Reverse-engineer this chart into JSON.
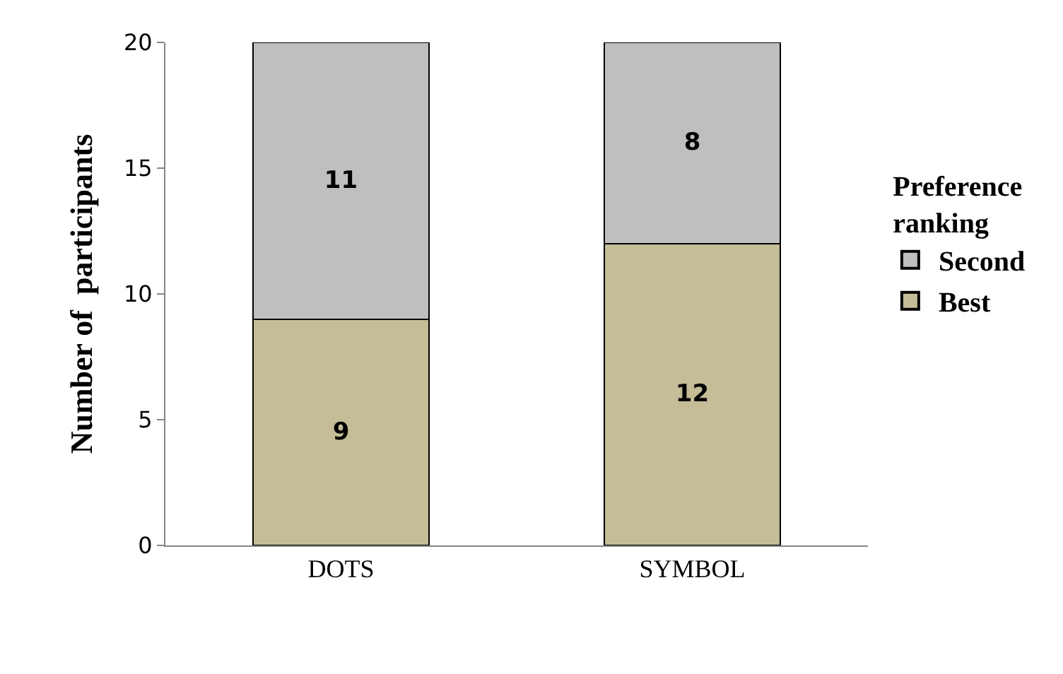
{
  "chart_data": {
    "type": "bar",
    "stacked": true,
    "ylabel": "Number of  participants",
    "legend_title": "Preference ranking",
    "legend": "right",
    "categories": [
      "DOTS",
      "SYMBOL"
    ],
    "series": [
      {
        "name": "Best",
        "color": "#c4bd97",
        "values": [
          9,
          12
        ]
      },
      {
        "name": "Second",
        "color": "#bfbfbf",
        "values": [
          11,
          8
        ]
      }
    ],
    "ylim": [
      0,
      20
    ],
    "yticks": [
      0,
      5,
      10,
      15,
      20
    ],
    "grid": false,
    "data_labels": true
  }
}
